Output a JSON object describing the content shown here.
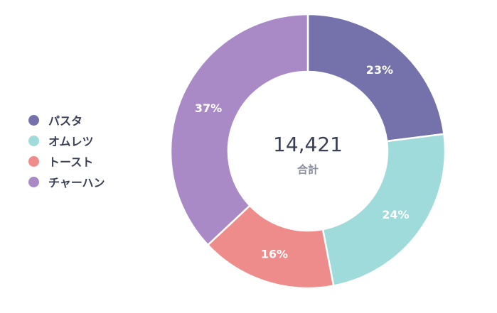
{
  "chart_data": {
    "type": "pie",
    "variant": "donut",
    "categories": [
      "パスタ",
      "オムレツ",
      "トースト",
      "チャーハン"
    ],
    "values": [
      23,
      24,
      16,
      37
    ],
    "value_unit": "%",
    "labels": [
      "23%",
      "24%",
      "16%",
      "37%"
    ],
    "colors": [
      "#7571ab",
      "#9fdbda",
      "#ee8c8c",
      "#a98ac6"
    ],
    "center": {
      "value": "14,421",
      "label": "合計"
    },
    "legend_position": "left"
  }
}
